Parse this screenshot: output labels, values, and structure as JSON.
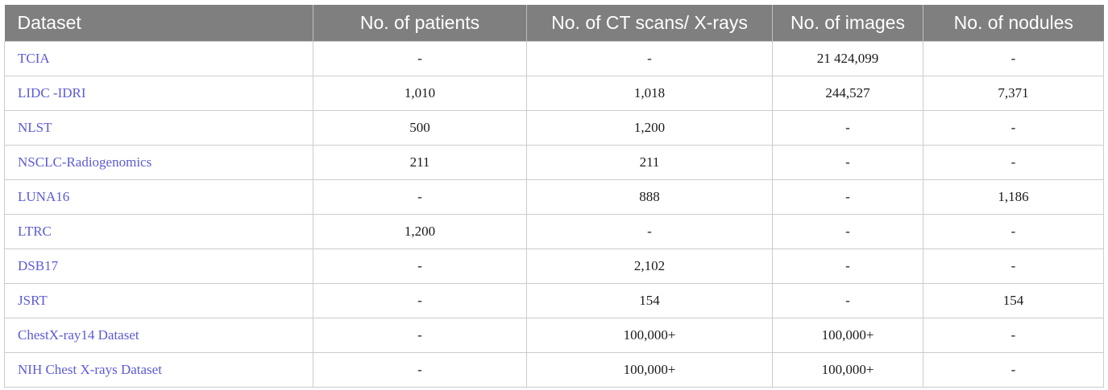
{
  "table": {
    "headers": [
      "Dataset",
      "No. of patients",
      "No. of CT scans/ X-rays",
      "No. of images",
      "No. of nodules"
    ],
    "rows": [
      [
        "TCIA",
        "-",
        "-",
        "21 424,099",
        "-"
      ],
      [
        "LIDC -IDRI",
        "1,010",
        "1,018",
        "244,527",
        "7,371"
      ],
      [
        "NLST",
        "500",
        "1,200",
        "-",
        "-"
      ],
      [
        "NSCLC-Radiogenomics",
        "211",
        "211",
        "-",
        "-"
      ],
      [
        "LUNA16",
        "-",
        "888",
        "-",
        "1,186"
      ],
      [
        "LTRC",
        "1,200",
        "-",
        "-",
        "-"
      ],
      [
        "DSB17",
        "-",
        "2,102",
        "-",
        "-"
      ],
      [
        "JSRT",
        "-",
        "154",
        "-",
        "154"
      ],
      [
        "ChestX-ray14 Dataset",
        "-",
        "100,000+",
        "100,000+",
        "-"
      ],
      [
        "NIH Chest X-rays Dataset",
        "-",
        "100,000+",
        "100,000+",
        "-"
      ]
    ]
  },
  "colors": {
    "header_bg": "#7f7f7f",
    "header_text": "#ffffff",
    "dataset_link": "#5b5bd6",
    "cell_text": "#1a1a1a",
    "border": "#cccccc"
  }
}
